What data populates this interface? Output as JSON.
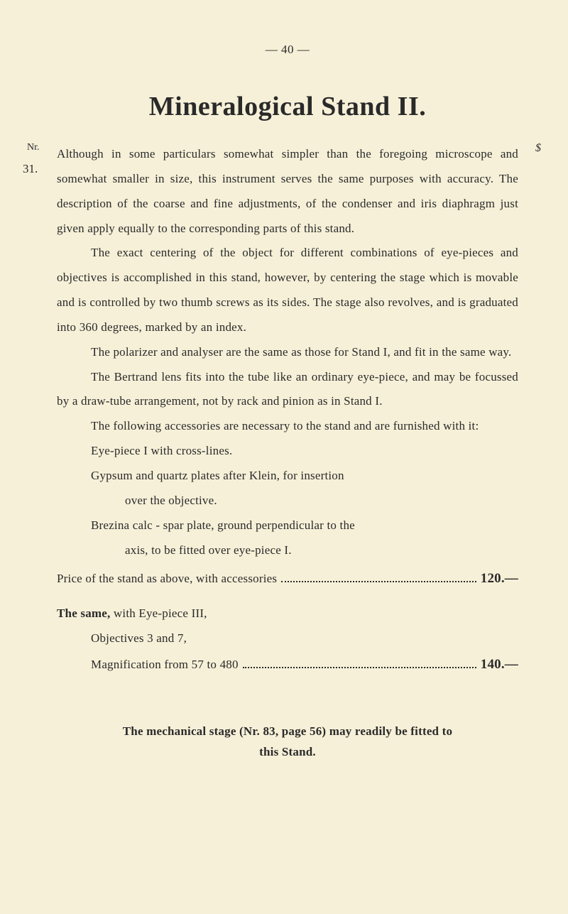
{
  "page_number": "—    40    —",
  "title": "Mineralogical Stand II.",
  "nr_label": "Nr.",
  "dollar": "$",
  "item_number": "31.",
  "p1": "Although in some particulars somewhat simpler than the foregoing microscope and somewhat smaller in size, this instrument serves the same purposes with accuracy. The description of the coarse and fine adjustments, of the condenser and iris diaphragm just given apply equally to the corresponding parts of this stand.",
  "p2": "The exact centering of the object for different combinations of eye-pieces and objectives is accomplished in this stand, however, by centering the stage which is movable and is controlled by two thumb screws as its sides. The stage also revolves, and is graduated into 360 degrees, marked by an index.",
  "p3": "The polarizer and analyser are the same as those for Stand I, and fit in the same way.",
  "p4": "The Bertrand lens fits into the tube like an ordinary eye-piece, and may be focussed by a draw-tube arrangement, not by rack and pinion as in Stand I.",
  "p5": "The following accessories are necessary to the stand and are furnished with it:",
  "li1": "Eye-piece I with cross-lines.",
  "li2a": "Gypsum and quartz plates after Klein, for insertion",
  "li2b": "over the objective.",
  "li3a": "Brezina calc - spar plate, ground perpendicular to the",
  "li3b": "axis, to be fitted over eye-piece I.",
  "price1_lead": "Price of the stand as above, with accessories",
  "price1_value": "120.—",
  "same_lead_bold": "The same,",
  "same_lead_rest": " with Eye-piece III,",
  "obj_line": "Objectives 3 and 7,",
  "mag_lead": "Magnification from 57 to 480",
  "price2_value": "140.—",
  "footer1": "The mechanical stage (Nr. 83, page 56) may readily be fitted to",
  "footer2": "this Stand."
}
